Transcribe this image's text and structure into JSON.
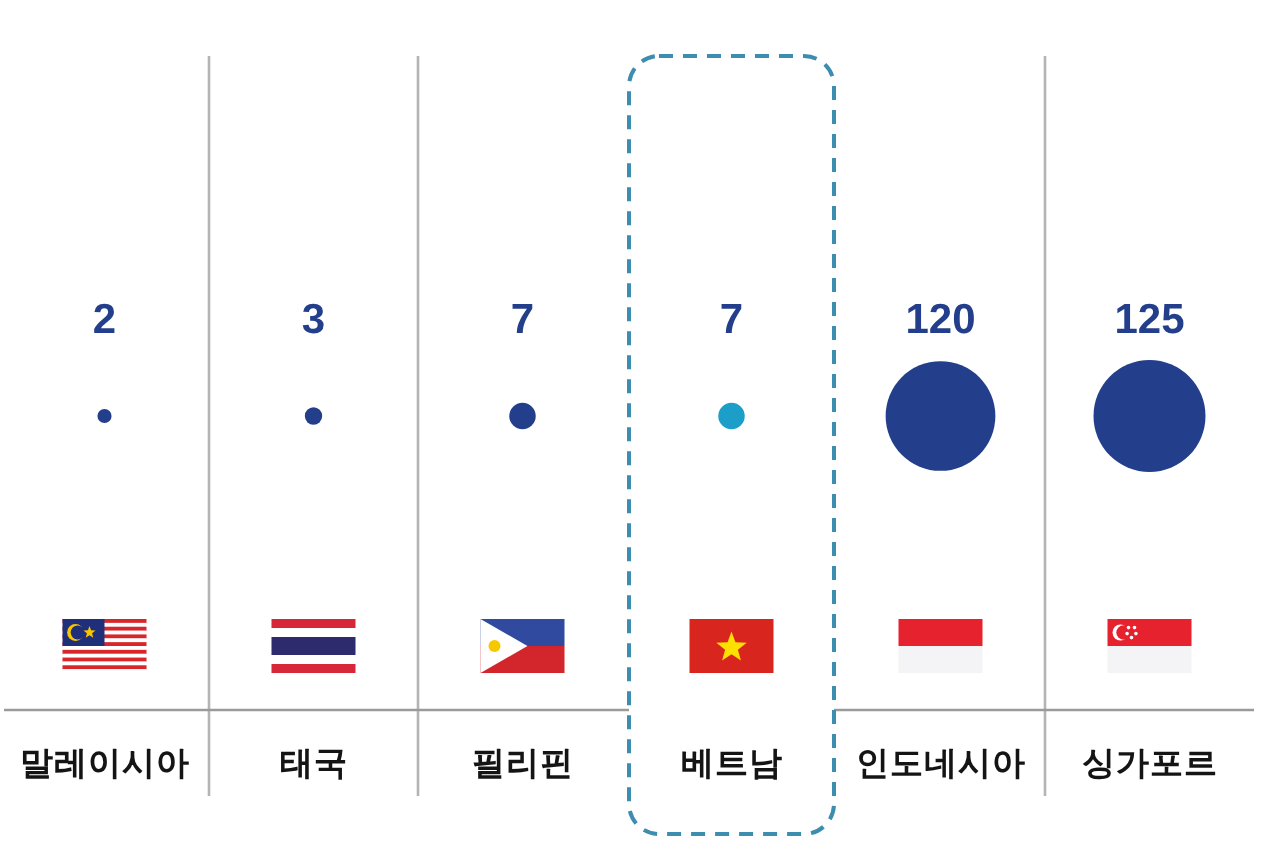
{
  "chart_data": {
    "type": "other",
    "categories": [
      "말레이시아",
      "태국",
      "필리핀",
      "베트남",
      "인도네시아",
      "싱가포르"
    ],
    "values": [
      2,
      3,
      7,
      7,
      120,
      125
    ],
    "colors": [
      "#233f8c",
      "#233f8c",
      "#233f8c",
      "#1b9ec8",
      "#233f8c",
      "#233f8c"
    ],
    "data_labels": true
  }
}
